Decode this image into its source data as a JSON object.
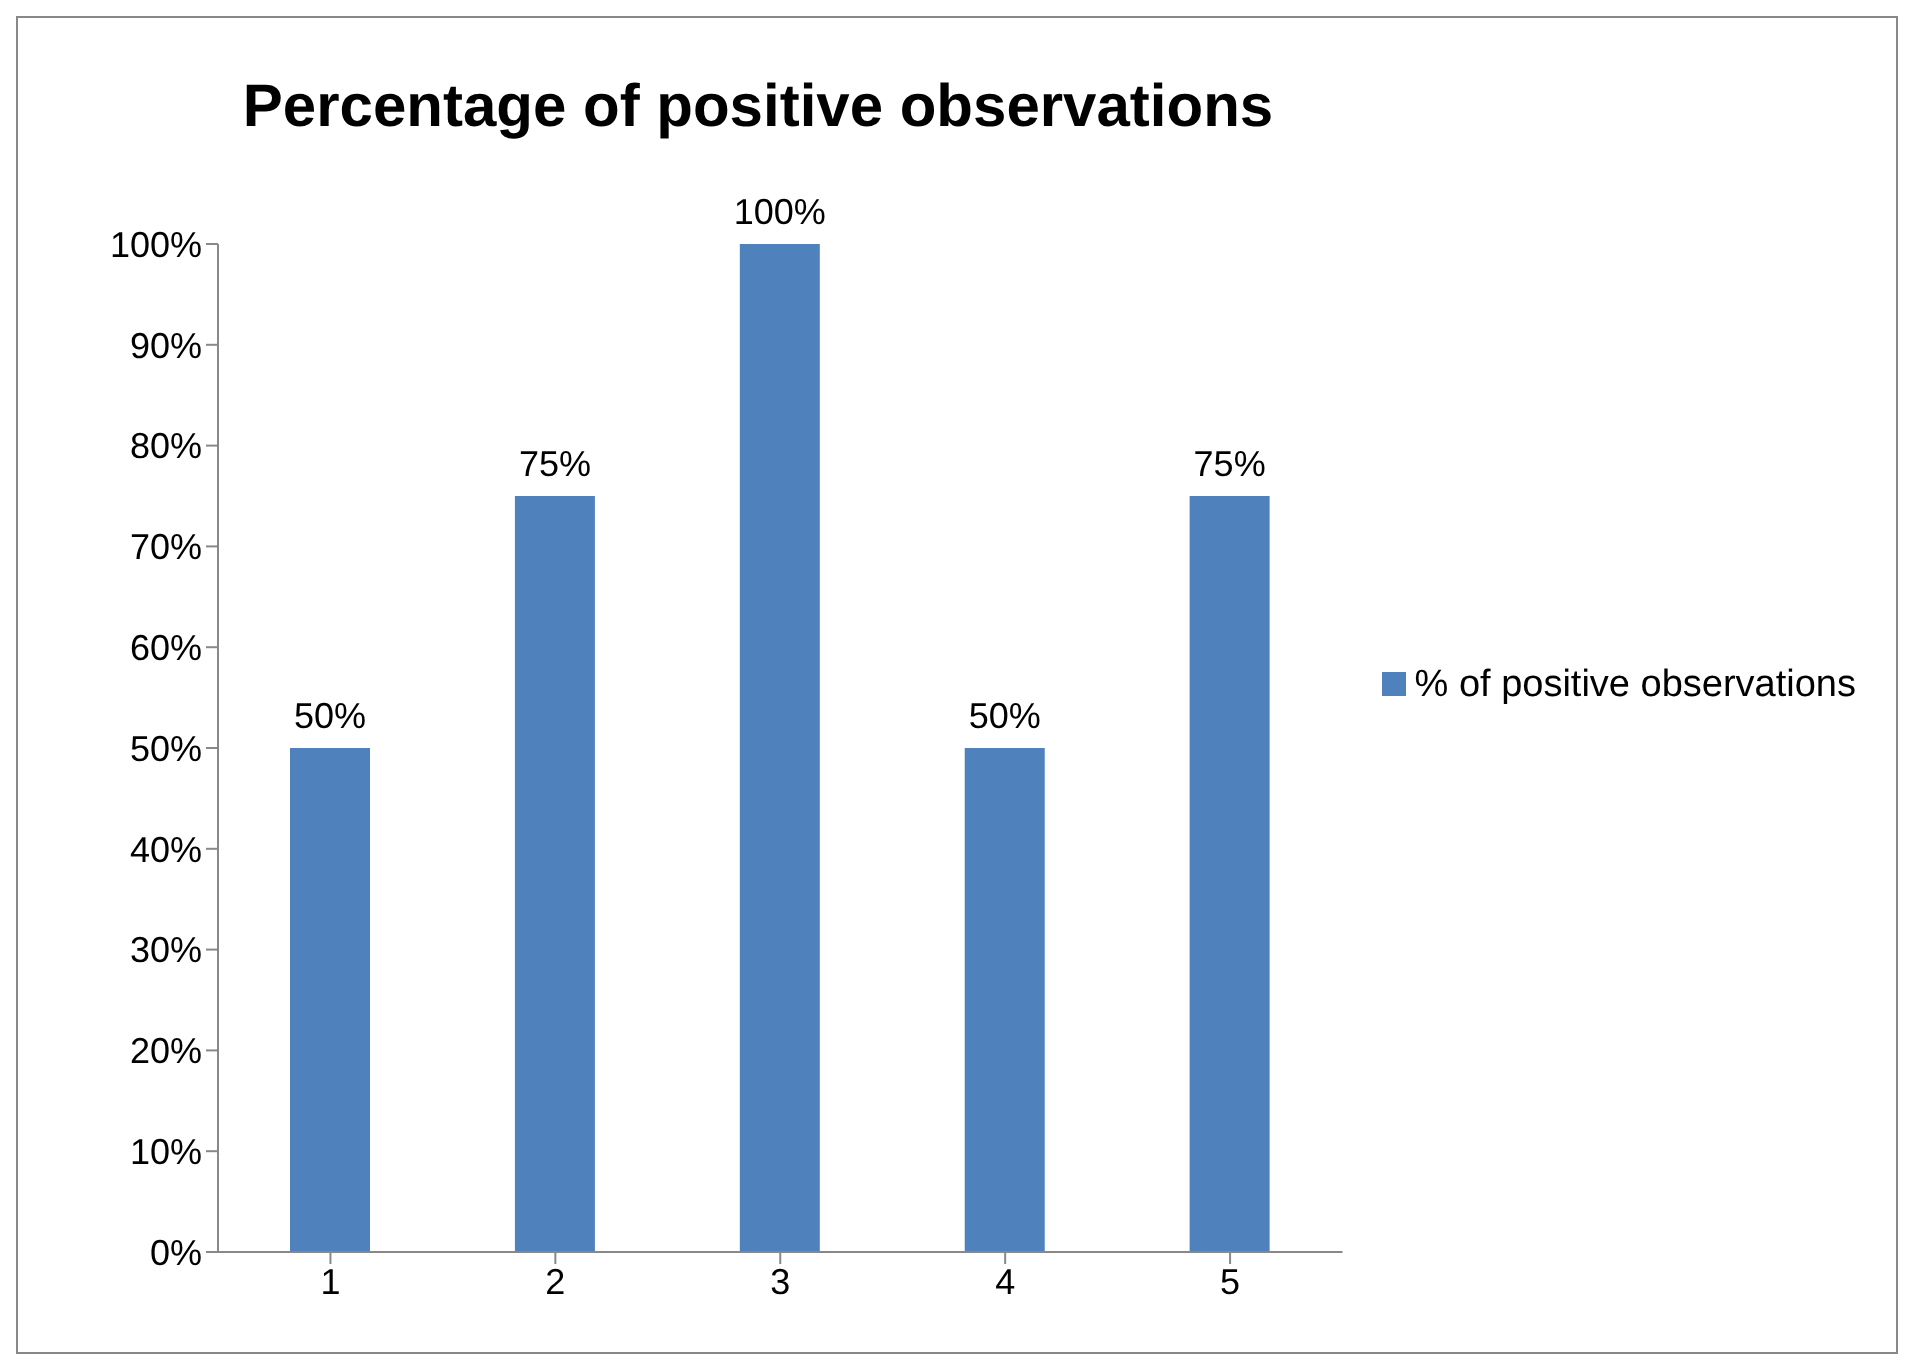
{
  "chart_data": {
    "type": "bar",
    "title": "Percentage of positive observations",
    "categories": [
      "1",
      "2",
      "3",
      "4",
      "5"
    ],
    "series": [
      {
        "name": "% of positive observations",
        "color": "#4f81bd",
        "values": [
          50,
          75,
          100,
          50,
          75
        ],
        "value_labels": [
          "50%",
          "75%",
          "100%",
          "50%",
          "75%"
        ]
      }
    ],
    "ylim": [
      0,
      100
    ],
    "yticks": [
      {
        "value": 0,
        "label": "0%"
      },
      {
        "value": 10,
        "label": "10%"
      },
      {
        "value": 20,
        "label": "20%"
      },
      {
        "value": 30,
        "label": "30%"
      },
      {
        "value": 40,
        "label": "40%"
      },
      {
        "value": 50,
        "label": "50%"
      },
      {
        "value": 60,
        "label": "60%"
      },
      {
        "value": 70,
        "label": "70%"
      },
      {
        "value": 80,
        "label": "80%"
      },
      {
        "value": 90,
        "label": "90%"
      },
      {
        "value": 100,
        "label": "100%"
      }
    ],
    "grid": false,
    "legend": "right"
  }
}
